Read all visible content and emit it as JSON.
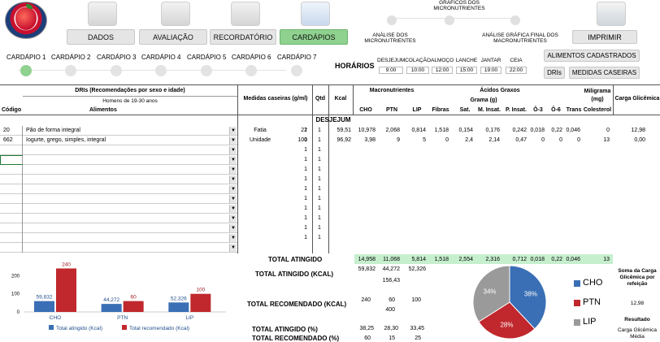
{
  "nav": {
    "items": [
      {
        "label": "DADOS"
      },
      {
        "label": "AVALIAÇÃO"
      },
      {
        "label": "RECORDATÓRIO"
      },
      {
        "label": "CARDÁPIOS"
      }
    ],
    "graficos_title": "GRÁFICOS DOS MICRONUTRIENTES",
    "analise_micro": "ANÁLISE DOS MICRONUTRIENTES",
    "analise_macro": "ANÁLISE GRÁFICA FINAL DOS MACRONUTRIENTES",
    "imprimir": "IMPRIMIR"
  },
  "cardapios": [
    "CARDÁPIO 1",
    "CARDÁPIO 2",
    "CARDÁPIO 3",
    "CARDÁPIO 4",
    "CARDÁPIO 5",
    "CARDÁPIO 6",
    "CARDÁPIO 7"
  ],
  "horarios": {
    "label": "HORÁRIOS",
    "meals": [
      {
        "name": "DESJEJUM",
        "time": "9:00"
      },
      {
        "name": "COLAÇÃO",
        "time": "10:00"
      },
      {
        "name": "ALMOÇO",
        "time": "12:00"
      },
      {
        "name": "LANCHE",
        "time": "15:00"
      },
      {
        "name": "JANTAR",
        "time": "19:00"
      },
      {
        "name": "CEIA",
        "time": "22:00"
      }
    ]
  },
  "buttons": {
    "alimentos": "ALIMENTOS CADASTRADOS",
    "dris": "DRIs",
    "medidas": "MEDIDAS CASEIRAS"
  },
  "header": {
    "dris": "DRIs (Recomendações por sexo e idade)",
    "homens": "Homens de 19-30 anos",
    "codigo": "Código",
    "alimentos": "Alimentos",
    "medidas": "Medidas caseiras (g/ml)",
    "qtd": "Qtd",
    "kcal": "Kcal",
    "macro": "Macronutrientes",
    "acidos": "Ácidos Graxos",
    "grama": "Grama (g)",
    "miligrama": "Miligrama (mg)",
    "carga": "Carga Glicêmica",
    "cols": [
      "CHO",
      "PTN",
      "LIP",
      "Fibras",
      "Sat.",
      "M. Insat.",
      "P. Insat.",
      "Ô-3",
      "Ô-6",
      "Trans",
      "Colesterol"
    ]
  },
  "meal": "DESJEJUM",
  "rows": [
    {
      "codigo": "20",
      "alimento": "Pão de forma integral",
      "medida": "Fatia",
      "g": "22",
      "qtd": "1",
      "kcal": "59,51",
      "vals": [
        "10,978",
        "2,068",
        "0,814",
        "1,518",
        "0,154",
        "0,176",
        "0,242",
        "0,018",
        "0,22",
        "0,046",
        "0"
      ],
      "carga": "12,98"
    },
    {
      "codigo": "662",
      "alimento": "Iogurte, grego, simples, integral",
      "medida": "Unidade",
      "g": "100",
      "qtd": "1",
      "kcal": "96,92",
      "vals": [
        "3,98",
        "9",
        "5",
        "0",
        "2,4",
        "2,14",
        "0,47",
        "0",
        "0",
        "0",
        "13"
      ],
      "carga": "0,00"
    }
  ],
  "empty_qtd": "1",
  "totals": {
    "atingido_label": "TOTAL ATINGIDO",
    "atingido_vals": [
      "14,958",
      "11,068",
      "5,814",
      "1,518",
      "2,554",
      "2,316",
      "0,712",
      "0,018",
      "0,22",
      "0,046",
      "13"
    ],
    "kcal_label": "TOTAL ATINGIDO (KCAL)",
    "kcal_vals": [
      "59,832",
      "44,272",
      "52,326"
    ],
    "kcal_total": "156,43",
    "rec_label": "TOTAL RECOMENDADO (KCAL)",
    "rec_vals": [
      "240",
      "60",
      "100"
    ],
    "rec_total": "400",
    "pct_label": "TOTAL ATINGIDO (%)",
    "pct_vals": [
      "38,25",
      "28,30",
      "33,45"
    ],
    "recpct_label": "TOTAL RECOMENDADO (%)",
    "recpct_vals": [
      "60",
      "15",
      "25"
    ]
  },
  "side": {
    "soma": "Soma da Carga Glicêmica por refeição",
    "soma_val": "12,98",
    "resultado": "Resultado",
    "carga_media": "Carga Glicêmica Média"
  },
  "chart_data": {
    "type": "bar",
    "categories": [
      "CHO",
      "PTN",
      "LIP"
    ],
    "series": [
      {
        "name": "Total atingido (Kcal)",
        "values": [
          59.832,
          44.272,
          52.326
        ],
        "labels": [
          "59,832",
          "44,272",
          "52,326"
        ],
        "color": "#3a6fb5"
      },
      {
        "name": "Total recomendado (Kcal)",
        "values": [
          240,
          60,
          100
        ],
        "labels": [
          "240",
          "60",
          "100"
        ],
        "color": "#c0282d"
      }
    ],
    "yticks": [
      "0",
      "100",
      "200"
    ],
    "ylim": [
      0,
      260
    ]
  },
  "pie": {
    "type": "pie",
    "labels": [
      "CHO",
      "PTN",
      "LIP"
    ],
    "values": [
      38,
      28,
      34
    ],
    "pct_labels": [
      "38%",
      "28%",
      "34%"
    ],
    "colors": [
      "#3a6fb5",
      "#c0282d",
      "#9a9a9a"
    ]
  }
}
